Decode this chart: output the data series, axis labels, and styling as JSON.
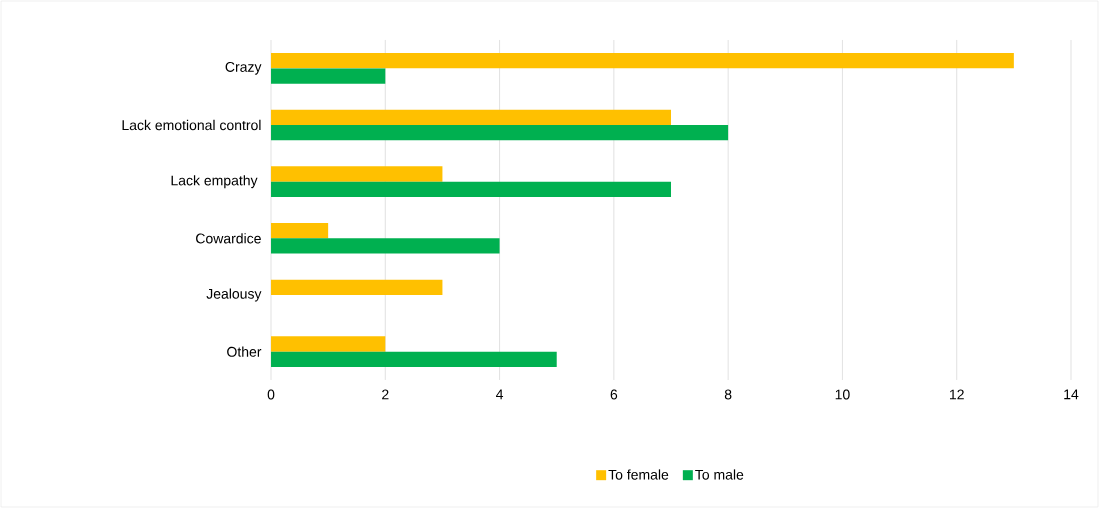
{
  "chart_data": {
    "type": "bar",
    "orientation": "horizontal",
    "categories": [
      "Crazy",
      "Lack emotional control",
      "Lack empathy ",
      "Cowardice",
      "Jealousy",
      "Other"
    ],
    "series": [
      {
        "name": "To female",
        "color": "#ffc000",
        "values": [
          13,
          7,
          3,
          1,
          3,
          2
        ]
      },
      {
        "name": "To male",
        "color": "#00b050",
        "values": [
          2,
          8,
          7,
          4,
          0,
          5
        ]
      }
    ],
    "xlim": [
      0,
      14
    ],
    "xticks": [
      0,
      2,
      4,
      6,
      8,
      10,
      12,
      14
    ],
    "grid": "x",
    "legend": "bottom"
  }
}
